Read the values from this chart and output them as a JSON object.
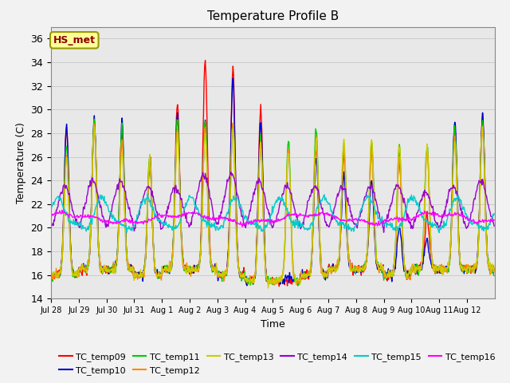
{
  "title": "Temperature Profile B",
  "xlabel": "Time",
  "ylabel": "Temperature (C)",
  "ylim": [
    14,
    37
  ],
  "yticks": [
    14,
    16,
    18,
    20,
    22,
    24,
    26,
    28,
    30,
    32,
    34,
    36
  ],
  "bg_color": "#f2f2f2",
  "plot_bg_color": "#e8e8e8",
  "annotation": "HS_met",
  "annotation_color": "#8B0000",
  "annotation_bg": "#ffff99",
  "series_colors": {
    "TC_temp09": "#ff0000",
    "TC_temp10": "#0000cc",
    "TC_temp11": "#00cc00",
    "TC_temp12": "#ff8800",
    "TC_temp13": "#cccc00",
    "TC_temp14": "#9900cc",
    "TC_temp15": "#00cccc",
    "TC_temp16": "#ff00ff"
  },
  "x_tick_labels": [
    "Jul 28",
    "Jul 29",
    "Jul 30",
    "Jul 31",
    "Aug 1",
    "Aug 2",
    "Aug 3",
    "Aug 4",
    "Aug 5",
    "Aug 6",
    "Aug 7",
    "Aug 8",
    "Aug 9",
    "Aug 10",
    "Aug 11",
    "Aug 12"
  ],
  "n_days": 16,
  "pts_per_day": 48
}
